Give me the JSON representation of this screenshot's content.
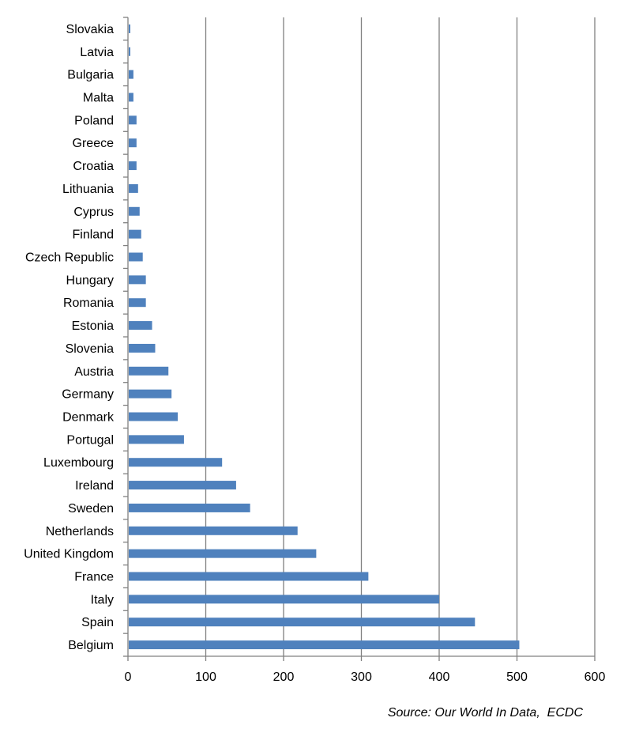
{
  "chart_data": {
    "type": "bar",
    "orientation": "horizontal",
    "title": "",
    "xlabel": "",
    "ylabel": "",
    "xlim": [
      0,
      600
    ],
    "x_ticks": [
      0,
      100,
      200,
      300,
      400,
      500,
      600
    ],
    "grid": "vertical",
    "legend": "none",
    "bar_color": "#4f81bd",
    "grid_color": "#808080",
    "categories": [
      "Slovakia",
      "Latvia",
      "Bulgaria",
      "Malta",
      "Poland",
      "Greece",
      "Croatia",
      "Lithuania",
      "Cyprus",
      "Finland",
      "Czech Republic",
      "Hungary",
      "Romania",
      "Estonia",
      "Slovenia",
      "Austria",
      "Germany",
      "Denmark",
      "Portugal",
      "Luxembourg",
      "Ireland",
      "Sweden",
      "Netherlands",
      "United Kingdom",
      "France",
      "Italy",
      "Spain",
      "Belgium"
    ],
    "values": [
      3,
      3,
      7,
      7,
      11,
      11,
      11,
      13,
      15,
      17,
      19,
      23,
      23,
      31,
      35,
      52,
      56,
      64,
      72,
      121,
      139,
      157,
      218,
      242,
      309,
      400,
      446,
      503
    ]
  },
  "source": "Source: Our World In Data,  ECDC"
}
